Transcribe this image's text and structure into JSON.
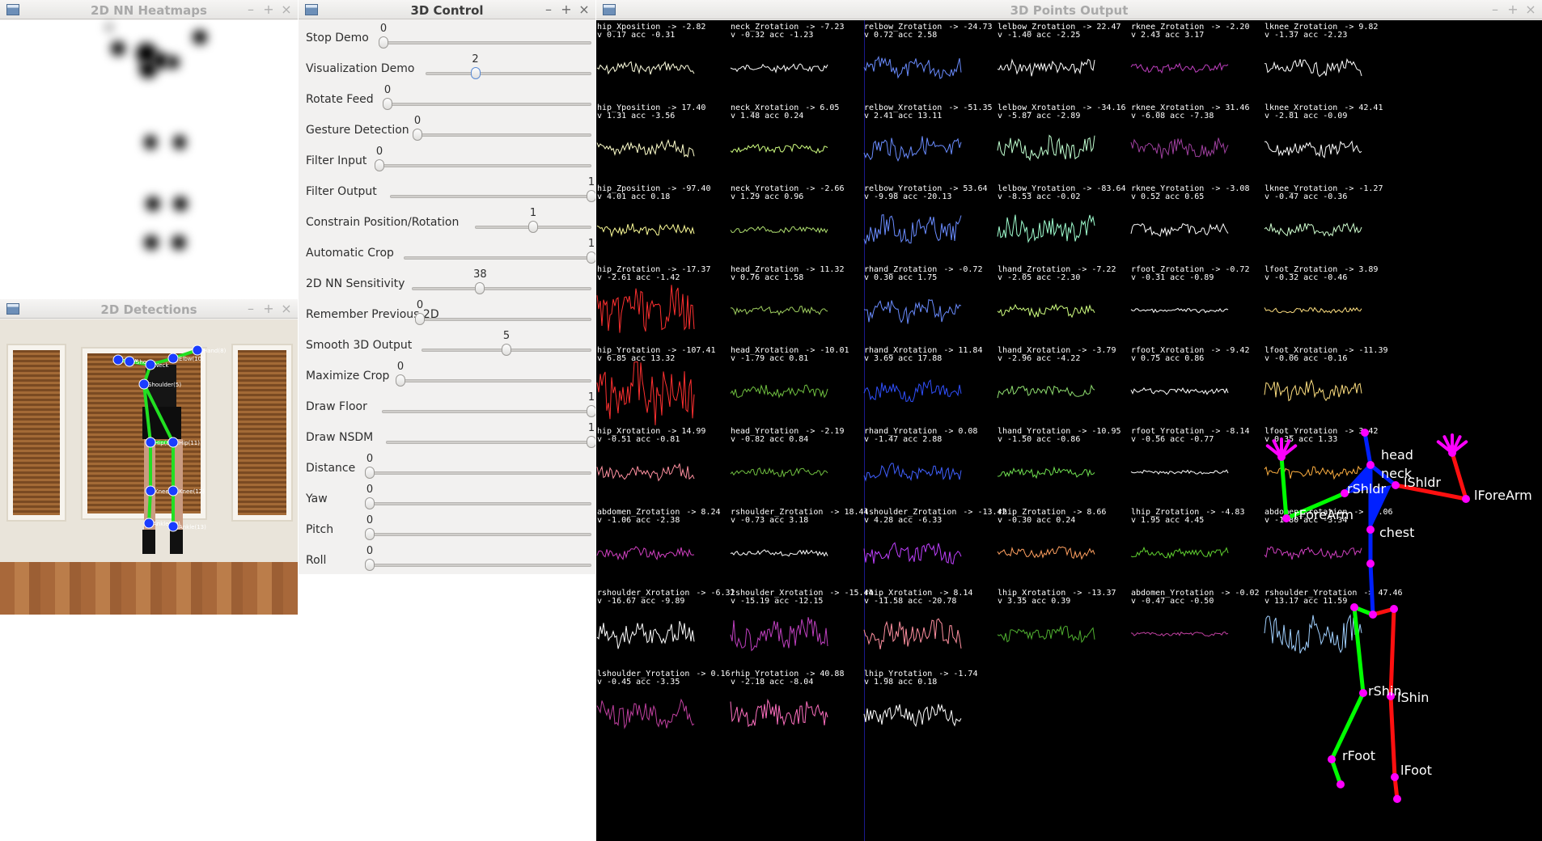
{
  "windows": {
    "heatmaps": {
      "title": "2D NN Heatmaps"
    },
    "detections": {
      "title": "2D Detections"
    },
    "control": {
      "title": "3D Control"
    },
    "output": {
      "title": "3D Points Output"
    }
  },
  "window_controls": {
    "minimize": "–",
    "maximize": "+",
    "close": "×"
  },
  "sliders": [
    {
      "label": "Stop Demo",
      "value": "0"
    },
    {
      "label": "Visualization Demo",
      "value": "2"
    },
    {
      "label": "Rotate Feed",
      "value": "0"
    },
    {
      "label": "Gesture Detection",
      "value": "0"
    },
    {
      "label": "Filter Input",
      "value": "0"
    },
    {
      "label": "Filter Output",
      "value": "1"
    },
    {
      "label": "Constrain Position/Rotation",
      "value": "1"
    },
    {
      "label": "Automatic Crop",
      "value": "1"
    },
    {
      "label": "2D NN Sensitivity",
      "value": "38"
    },
    {
      "label": "Remember Previous 2D",
      "value": "0"
    },
    {
      "label": "Smooth 3D Output",
      "value": "5"
    },
    {
      "label": "Maximize Crop",
      "value": "0"
    },
    {
      "label": "Draw Floor",
      "value": "1"
    },
    {
      "label": "Draw NSDM",
      "value": "1"
    },
    {
      "label": "Distance",
      "value": "0"
    },
    {
      "label": "Yaw",
      "value": "0"
    },
    {
      "label": "Pitch",
      "value": "0"
    },
    {
      "label": "Roll",
      "value": "0"
    }
  ],
  "slider_levels": [
    0,
    0.3,
    0,
    0,
    0,
    1,
    0.5,
    1,
    0.38,
    0,
    0.5,
    0,
    1,
    1,
    0,
    0,
    0,
    0
  ],
  "detections_labels": [
    "rElbw",
    "rSho",
    "lElbw(10)",
    "lHand(8)",
    "Neck",
    "Shoulder(5)",
    "Hip(8)",
    "lHip(11)",
    "Knee(9)",
    "lKnee(12)",
    "Ankle(10)",
    "lAnkle(13)"
  ],
  "plots": [
    {
      "name": "hip_Xposition",
      "arrow": "-> -2.82",
      "v": "v 0.17 acc -0.31",
      "color": "#ffffe0"
    },
    {
      "name": "neck_Zrotation",
      "arrow": "-> -7.23",
      "v": "v -0.32 acc -1.23",
      "color": "#ffffff"
    },
    {
      "name": "relbow_Zrotation",
      "arrow": "-> -24.73",
      "v": "v 0.72 acc 2.58",
      "color": "#6a8cff"
    },
    {
      "name": "lelbow_Zrotation",
      "arrow": "-> 22.47",
      "v": "v -1.40 acc -2.25",
      "color": "#ffffff"
    },
    {
      "name": "rknee_Zrotation",
      "arrow": "-> -2.20",
      "v": "v 2.43 acc 3.17",
      "color": "#c040c0"
    },
    {
      "name": "lknee_Zrotation",
      "arrow": "-> 9.82",
      "v": "v -1.37 acc -2.23",
      "color": "#ffffff"
    },
    {
      "name": "hip_Yposition",
      "arrow": "-> 17.40",
      "v": "v 1.31 acc -3.56",
      "color": "#ffffcc"
    },
    {
      "name": "neck_Xrotation",
      "arrow": "-> 6.05",
      "v": "v 1.48 acc 0.24",
      "color": "#d0ff80"
    },
    {
      "name": "relbow_Xrotation",
      "arrow": "-> -51.35",
      "v": "v 2.41 acc 13.11",
      "color": "#6a8cff"
    },
    {
      "name": "lelbow_Xrotation",
      "arrow": "-> -34.16",
      "v": "v -5.87 acc -2.89",
      "color": "#c0ffd0"
    },
    {
      "name": "rknee_Xrotation",
      "arrow": "-> 31.46",
      "v": "v -6.08 acc -7.38",
      "color": "#a040a0"
    },
    {
      "name": "lknee_Xrotation",
      "arrow": "-> 42.41",
      "v": "v -2.81 acc -0.09",
      "color": "#ffffff"
    },
    {
      "name": "hip_Zposition",
      "arrow": "-> -97.40",
      "v": "v 4.01 acc 0.18",
      "color": "#ffff99"
    },
    {
      "name": "neck_Yrotation",
      "arrow": "-> -2.66",
      "v": "v 1.29 acc 0.96",
      "color": "#b0e070"
    },
    {
      "name": "relbow_Yrotation",
      "arrow": "-> 53.64",
      "v": "v -9.98 acc -20.13",
      "color": "#6a8cff"
    },
    {
      "name": "lelbow_Yrotation",
      "arrow": "-> -83.64",
      "v": "v -8.53 acc -0.02",
      "color": "#a0ffd0"
    },
    {
      "name": "rknee_Yrotation",
      "arrow": "-> -3.08",
      "v": "v 0.52 acc 0.65",
      "color": "#ffffff"
    },
    {
      "name": "lknee_Yrotation",
      "arrow": "-> -1.27",
      "v": "v -0.47 acc -0.36",
      "color": "#d0ffd0"
    },
    {
      "name": "hip_Zrotation",
      "arrow": "-> -17.37",
      "v": "v -2.61 acc -1.42",
      "color": "#ff3030"
    },
    {
      "name": "head_Zrotation",
      "arrow": "-> 11.32",
      "v": "v 0.76 acc 1.58",
      "color": "#a0d060"
    },
    {
      "name": "rhand_Zrotation",
      "arrow": "-> -0.72",
      "v": "v 0.30 acc 1.75",
      "color": "#6a8cff"
    },
    {
      "name": "lhand_Zrotation",
      "arrow": "-> -7.22",
      "v": "v -2.05 acc -2.30",
      "color": "#d0ff80"
    },
    {
      "name": "rfoot_Zrotation",
      "arrow": "-> -0.72",
      "v": "v -0.31 acc -0.89",
      "color": "#ffffff"
    },
    {
      "name": "lfoot_Zrotation",
      "arrow": "-> 3.89",
      "v": "v -0.32 acc -0.46",
      "color": "#ffe080"
    },
    {
      "name": "hip_Yrotation",
      "arrow": "-> -107.41",
      "v": "v 6.85 acc 13.32",
      "color": "#ff3030"
    },
    {
      "name": "head_Xrotation",
      "arrow": "-> -10.01",
      "v": "v -1.79 acc 0.81",
      "color": "#70c040"
    },
    {
      "name": "rhand_Xrotation",
      "arrow": "-> 11.84",
      "v": "v 3.69 acc 17.88",
      "color": "#3050ff"
    },
    {
      "name": "lhand_Xrotation",
      "arrow": "-> -3.79",
      "v": "v -2.96 acc -4.22",
      "color": "#90e070"
    },
    {
      "name": "rfoot_Xrotation",
      "arrow": "-> -9.42",
      "v": "v 0.75 acc 0.86",
      "color": "#ffffff"
    },
    {
      "name": "lfoot_Xrotation",
      "arrow": "-> -11.39",
      "v": "v -0.06 acc -0.16",
      "color": "#ffe080"
    },
    {
      "name": "hip_Xrotation",
      "arrow": "-> 14.99",
      "v": "v -0.51 acc -0.81",
      "color": "#ff90a0"
    },
    {
      "name": "head_Yrotation",
      "arrow": "-> -2.19",
      "v": "v -0.82 acc 0.84",
      "color": "#70c040"
    },
    {
      "name": "rhand_Yrotation",
      "arrow": "-> 0.08",
      "v": "v -1.47 acc 2.88",
      "color": "#4060ff"
    },
    {
      "name": "lhand_Yrotation",
      "arrow": "-> -10.95",
      "v": "v -1.50 acc -0.86",
      "color": "#70e050"
    },
    {
      "name": "rfoot_Yrotation",
      "arrow": "-> -8.14",
      "v": "v -0.56 acc -0.77",
      "color": "#ffffff"
    },
    {
      "name": "lfoot_Yrotation",
      "arrow": "-> 3.42",
      "v": "v 0.35 acc 1.33",
      "color": "#ffb040"
    },
    {
      "name": "abdomen_Zrotation",
      "arrow": "-> 8.24",
      "v": "v -1.06 acc -2.38",
      "color": "#d040c0"
    },
    {
      "name": "rshoulder_Zrotation",
      "arrow": "-> 18.44",
      "v": "v -0.73 acc 3.18",
      "color": "#ffffff"
    },
    {
      "name": "lshoulder_Zrotation",
      "arrow": "-> -13.42",
      "v": "v 4.28 acc -6.33",
      "color": "#c040ff"
    },
    {
      "name": "rhip_Zrotation",
      "arrow": "-> 8.66",
      "v": "v -0.30 acc 0.24",
      "color": "#ffa060"
    },
    {
      "name": "lhip_Zrotation",
      "arrow": "-> -4.83",
      "v": "v 1.95 acc 4.45",
      "color": "#60d030"
    },
    {
      "name": "abdomen_Xrotation",
      "arrow": "-> 20.06",
      "v": "v -1.80 acc -3.34",
      "color": "#d040c0"
    },
    {
      "name": "rshoulder_Xrotation",
      "arrow": "-> -6.32",
      "v": "v -16.67 acc -9.89",
      "color": "#ffffff"
    },
    {
      "name": "lshoulder_Xrotation",
      "arrow": "-> -15.44",
      "v": "v -15.19 acc -12.15",
      "color": "#c040c0"
    },
    {
      "name": "rhip_Xrotation",
      "arrow": "-> 8.14",
      "v": "v -11.58 acc -20.78",
      "color": "#ff90a0"
    },
    {
      "name": "lhip_Xrotation",
      "arrow": "-> -13.37",
      "v": "v 3.35 acc 0.39",
      "color": "#50b030"
    },
    {
      "name": "abdomen_Yrotation",
      "arrow": "-> -0.02",
      "v": "v -0.47 acc -0.50",
      "color": "#c040a0"
    },
    {
      "name": "rshoulder_Yrotation",
      "arrow": "-> 47.46",
      "v": "v 13.17 acc 11.59",
      "color": "#a0d0ff"
    },
    {
      "name": "lshoulder_Yrotation",
      "arrow": "-> 0.16",
      "v": "v -0.45 acc -3.35",
      "color": "#c040a0"
    },
    {
      "name": "rhip_Yrotation",
      "arrow": "-> 40.88",
      "v": "v -2.18 acc -8.04",
      "color": "#ff70c0"
    },
    {
      "name": "lhip_Yrotation",
      "arrow": "-> -1.74",
      "v": "v 1.98 acc 0.18",
      "color": "#ffffff"
    }
  ],
  "skeleton_labels": {
    "head": "head",
    "neck": "neck",
    "rShldr": "rShldr",
    "lShldr": "lShldr",
    "rForeArm": "rForeArm",
    "lForeArm": "lForeArm",
    "chest": "chest",
    "rShin": "rShin",
    "lShin": "lShin",
    "rFoot": "rFoot",
    "lFoot": "lFoot"
  },
  "colors": {
    "right_side": "#00ff00",
    "left_side": "#ff1010",
    "spine": "#0020ff",
    "joint": "#ff00ff",
    "slider_focus": "#5b8bd4"
  }
}
